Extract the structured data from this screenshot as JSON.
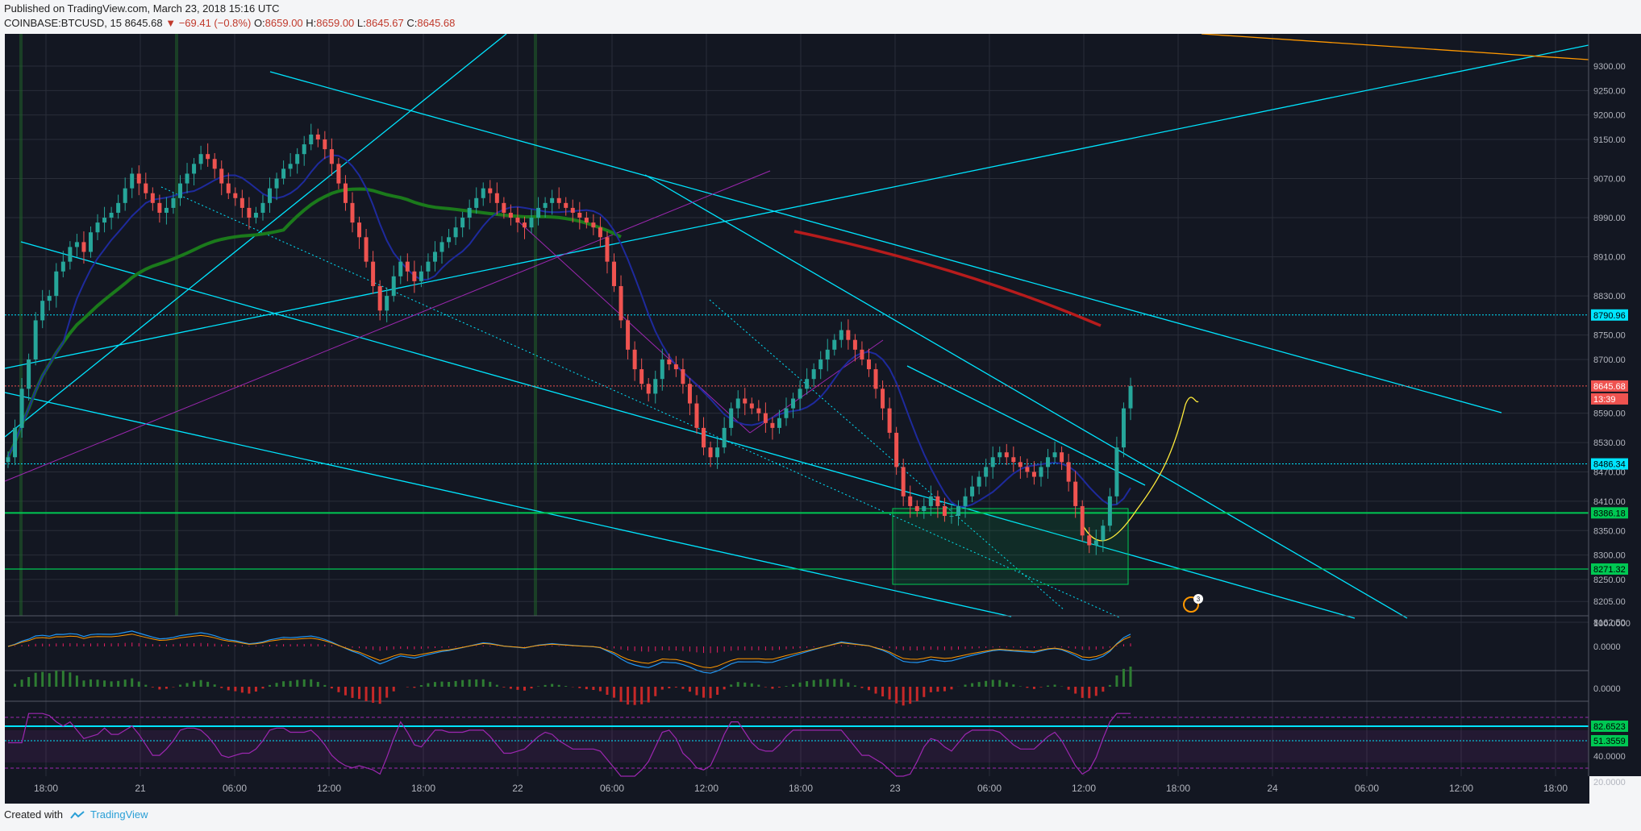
{
  "header": {
    "published": "Published on TradingView.com, March 23, 2018 15:16 UTC",
    "symbol": "COINBASE:BTCUSD, 15",
    "last": "8645.68",
    "change": "−69.41 (−0.8%)",
    "o_label": "O:",
    "o": "8659.00",
    "h_label": "H:",
    "h": "8659.00",
    "l_label": "L:",
    "l": "8645.67",
    "c_label": "C:",
    "c": "8645.68"
  },
  "footer": {
    "created_with": "Created with",
    "brand": "TradingView"
  },
  "colors": {
    "background": "#131722",
    "grid": "#2a2e39",
    "up": "#26a69a",
    "down": "#ef5350",
    "trendline": "#00e5ff",
    "support": "#00c853",
    "ma_green": "#1b7a1b",
    "ma_red": "#b71c1c",
    "ma_blue": "#1e2a9c",
    "rsi": "#9c27b0",
    "orange": "#ff9800",
    "yellow": "#ffeb3b"
  },
  "chart_data": {
    "type": "candlestick",
    "symbol": "COINBASE:BTCUSD",
    "interval": "15",
    "y_ticks": [
      "9300.00",
      "9250.00",
      "9200.00",
      "9150.00",
      "9070.00",
      "8990.00",
      "8910.00",
      "8830.00",
      "8750.00",
      "8700.00",
      "8590.00",
      "8530.00",
      "8470.00",
      "8410.00",
      "8350.00",
      "8300.00",
      "8250.00",
      "8205.00",
      "8162.50"
    ],
    "x_ticks": [
      "18:00",
      "21",
      "06:00",
      "12:00",
      "18:00",
      "22",
      "06:00",
      "12:00",
      "18:00",
      "23",
      "06:00",
      "12:00",
      "18:00",
      "24",
      "06:00",
      "12:00",
      "18:00"
    ],
    "price_labels": [
      {
        "value": "8790.96",
        "kind": "level"
      },
      {
        "value": "8645.68",
        "kind": "last"
      },
      {
        "value": "13:39",
        "kind": "countdown"
      },
      {
        "value": "8486.34",
        "kind": "level"
      },
      {
        "value": "8386.18",
        "kind": "support"
      },
      {
        "value": "8271.32",
        "kind": "support"
      }
    ],
    "closes": [
      8500,
      8560,
      8640,
      8700,
      8780,
      8820,
      8830,
      8880,
      8900,
      8930,
      8940,
      8920,
      8960,
      8980,
      8990,
      9000,
      9020,
      9050,
      9080,
      9060,
      9040,
      9020,
      9000,
      9010,
      9030,
      9060,
      9080,
      9100,
      9120,
      9110,
      9090,
      9060,
      9040,
      9030,
      9010,
      8990,
      9000,
      9020,
      9050,
      9070,
      9090,
      9100,
      9120,
      9140,
      9160,
      9150,
      9130,
      9100,
      9060,
      9020,
      8980,
      8950,
      8900,
      8850,
      8800,
      8830,
      8870,
      8900,
      8880,
      8860,
      8880,
      8900,
      8920,
      8940,
      8950,
      8970,
      8990,
      9010,
      9030,
      9050,
      9040,
      9020,
      9000,
      8990,
      8980,
      8970,
      8990,
      9010,
      9020,
      9030,
      9020,
      9010,
      9000,
      8990,
      8980,
      8970,
      8950,
      8900,
      8850,
      8780,
      8720,
      8680,
      8650,
      8630,
      8660,
      8700,
      8690,
      8680,
      8650,
      8610,
      8560,
      8520,
      8500,
      8520,
      8560,
      8600,
      8620,
      8610,
      8600,
      8590,
      8570,
      8560,
      8580,
      8600,
      8620,
      8640,
      8660,
      8680,
      8700,
      8720,
      8740,
      8760,
      8740,
      8720,
      8700,
      8680,
      8640,
      8600,
      8550,
      8480,
      8420,
      8400,
      8390,
      8400,
      8420,
      8400,
      8380,
      8380,
      8400,
      8420,
      8440,
      8460,
      8480,
      8500,
      8510,
      8500,
      8490,
      8480,
      8470,
      8460,
      8480,
      8500,
      8510,
      8490,
      8450,
      8400,
      8340,
      8320,
      8330,
      8360,
      8420,
      8520,
      8600,
      8645.68
    ],
    "moving_averages": [
      {
        "color": "green",
        "kind": "long"
      },
      {
        "color": "red",
        "kind": "long"
      },
      {
        "color": "blue",
        "kind": "short"
      }
    ],
    "indicators": [
      {
        "name": "MACD",
        "ticks": [
          "100.0000",
          "0.0000"
        ]
      },
      {
        "name": "Histogram",
        "ticks": [
          "0.0000"
        ]
      },
      {
        "name": "RSI",
        "ticks": [
          "40.0000",
          "20.0000"
        ],
        "levels": [
          "82.6523",
          "51.3559"
        ]
      }
    ],
    "annotation_badge": "3"
  }
}
